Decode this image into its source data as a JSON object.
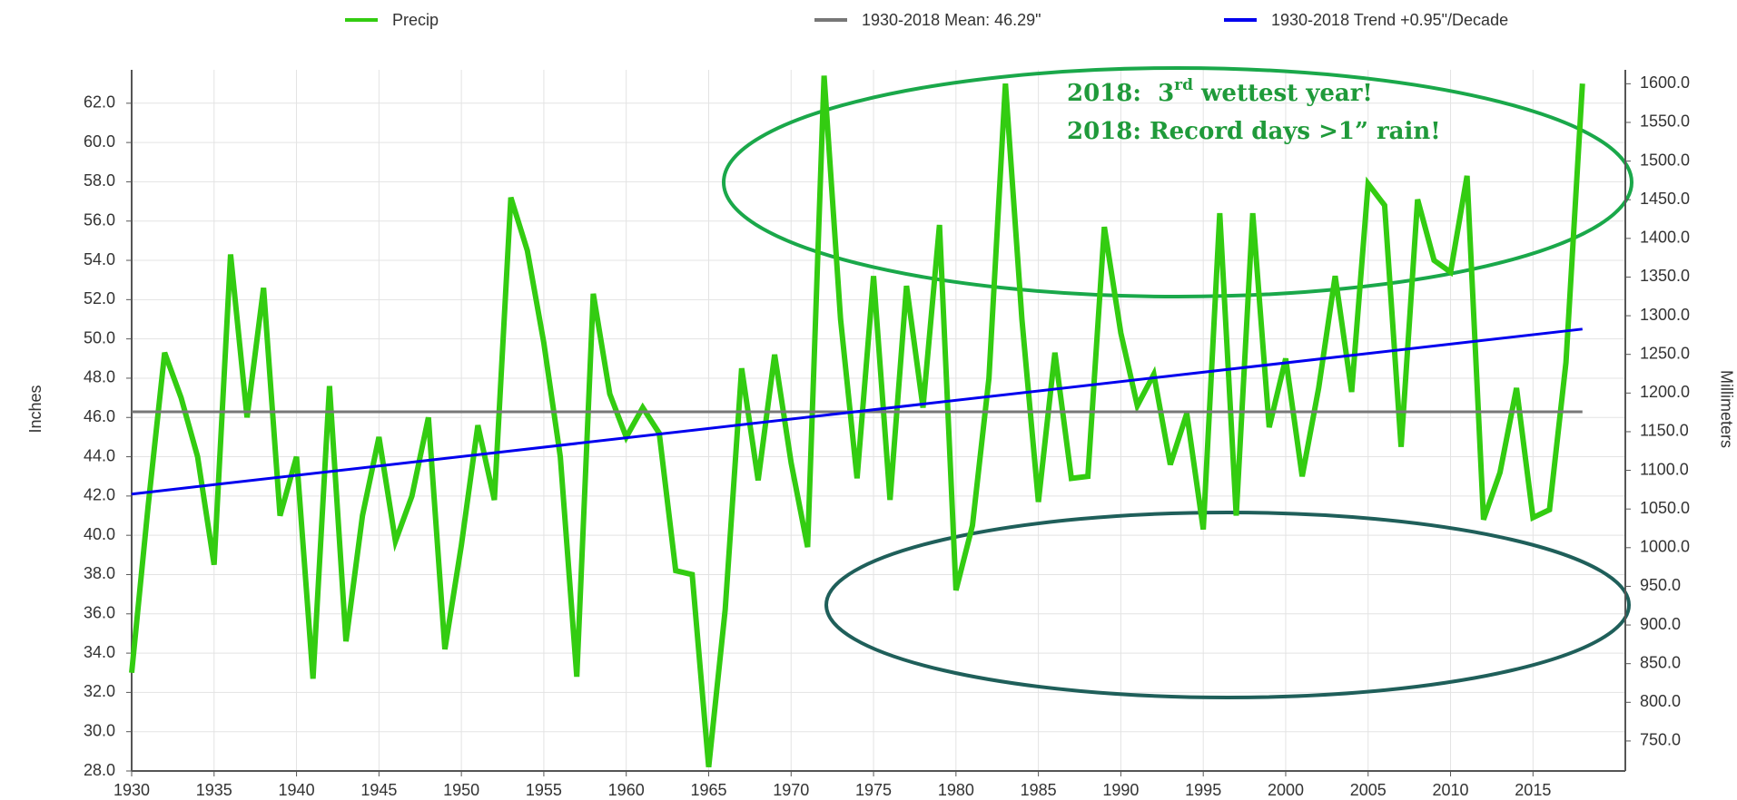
{
  "chart_data": {
    "type": "line",
    "y_label": "Inches",
    "y2_label": "Millimeters",
    "annotation_1": {
      "text": "2018:  3",
      "superscript": "rd",
      "rest": " wettest year!"
    },
    "annotation_2": "2018: Record days >1” rain!",
    "x": [
      1930,
      1931,
      1932,
      1933,
      1934,
      1935,
      1936,
      1937,
      1938,
      1939,
      1940,
      1941,
      1942,
      1943,
      1944,
      1945,
      1946,
      1947,
      1948,
      1949,
      1950,
      1951,
      1952,
      1953,
      1954,
      1955,
      1956,
      1957,
      1958,
      1959,
      1960,
      1961,
      1962,
      1963,
      1964,
      1965,
      1966,
      1967,
      1968,
      1969,
      1970,
      1971,
      1972,
      1973,
      1974,
      1975,
      1976,
      1977,
      1978,
      1979,
      1980,
      1981,
      1982,
      1983,
      1984,
      1985,
      1986,
      1987,
      1988,
      1989,
      1990,
      1991,
      1992,
      1993,
      1994,
      1995,
      1996,
      1997,
      1998,
      1999,
      2000,
      2001,
      2002,
      2003,
      2004,
      2005,
      2006,
      2007,
      2008,
      2009,
      2010,
      2011,
      2012,
      2013,
      2014,
      2015,
      2016,
      2017,
      2018
    ],
    "series": [
      {
        "name": "Precip",
        "color": "#33cc11",
        "values": [
          33.0,
          41.5,
          49.3,
          47.0,
          44.0,
          38.5,
          54.3,
          46.0,
          52.6,
          41.0,
          44.0,
          32.7,
          47.6,
          34.6,
          41.0,
          45.0,
          39.7,
          42.0,
          46.0,
          34.2,
          39.5,
          45.6,
          41.8,
          57.2,
          54.5,
          49.8,
          44.0,
          32.8,
          52.3,
          47.2,
          45.0,
          46.5,
          45.2,
          38.2,
          38.0,
          28.2,
          36.2,
          48.5,
          42.8,
          49.2,
          43.7,
          39.4,
          63.4,
          51.0,
          42.9,
          53.2,
          41.8,
          52.7,
          46.5,
          55.8,
          37.2,
          40.5,
          48.0,
          63.0,
          51.0,
          41.7,
          49.3,
          42.9,
          43.0,
          55.7,
          50.3,
          46.6,
          48.2,
          43.6,
          46.2,
          40.3,
          56.4,
          41.0,
          56.4,
          45.5,
          49.0,
          43.0,
          47.5,
          53.2,
          47.3,
          57.9,
          56.8,
          44.5,
          57.1,
          54.0,
          53.4,
          58.3,
          40.8,
          43.2,
          47.5,
          40.9,
          41.3,
          48.8,
          63.0
        ]
      },
      {
        "name": "1930-2018 Mean: 46.29\"",
        "color": "#777777",
        "x": [
          1930,
          2018
        ],
        "values": [
          46.29,
          46.29
        ]
      },
      {
        "name": "1930-2018 Trend +0.95\"/Decade",
        "color": "#0000ee",
        "x": [
          1930,
          2018
        ],
        "values": [
          42.1,
          50.5
        ]
      }
    ],
    "xlim": [
      1930,
      2020.6
    ],
    "xticks": [
      1930,
      1935,
      1940,
      1945,
      1950,
      1955,
      1960,
      1965,
      1970,
      1975,
      1980,
      1985,
      1990,
      1995,
      2000,
      2005,
      2010,
      2015
    ],
    "ylim": [
      28,
      63.7
    ],
    "yticks": [
      {
        "value": 28,
        "label": "28.0"
      },
      {
        "value": 30,
        "label": "30.0"
      },
      {
        "value": 32,
        "label": "32.0"
      },
      {
        "value": 34,
        "label": "34.0"
      },
      {
        "value": 36,
        "label": "36.0"
      },
      {
        "value": 38,
        "label": "38.0"
      },
      {
        "value": 40,
        "label": "40.0"
      },
      {
        "value": 42,
        "label": "42.0"
      },
      {
        "value": 44,
        "label": "44.0"
      },
      {
        "value": 46,
        "label": "46.0"
      },
      {
        "value": 48,
        "label": "48.0"
      },
      {
        "value": 50,
        "label": "50.0"
      },
      {
        "value": 52,
        "label": "52.0"
      },
      {
        "value": 54,
        "label": "54.0"
      },
      {
        "value": 56,
        "label": "56.0"
      },
      {
        "value": 58,
        "label": "58.0"
      },
      {
        "value": 60,
        "label": "60.0"
      },
      {
        "value": 62,
        "label": "62.0"
      }
    ],
    "y2lim": [
      711.2,
      1618.0
    ],
    "y2ticks": [
      {
        "value": 750,
        "label": "750.0"
      },
      {
        "value": 800,
        "label": "800.0"
      },
      {
        "value": 850,
        "label": "850.0"
      },
      {
        "value": 900,
        "label": "900.0"
      },
      {
        "value": 950,
        "label": "950.0"
      },
      {
        "value": 1000,
        "label": "1000.0"
      },
      {
        "value": 1050,
        "label": "1050.0"
      },
      {
        "value": 1100,
        "label": "1100.0"
      },
      {
        "value": 1150,
        "label": "1150.0"
      },
      {
        "value": 1200,
        "label": "1200.0"
      },
      {
        "value": 1250,
        "label": "1250.0"
      },
      {
        "value": 1300,
        "label": "1300.0"
      },
      {
        "value": 1350,
        "label": "1350.0"
      },
      {
        "value": 1400,
        "label": "1400.0"
      },
      {
        "value": 1450,
        "label": "1450.0"
      },
      {
        "value": 1500,
        "label": "1500.0"
      },
      {
        "value": 1550,
        "label": "1550.0"
      },
      {
        "value": 1600,
        "label": "1600.0"
      }
    ],
    "grid": true
  }
}
